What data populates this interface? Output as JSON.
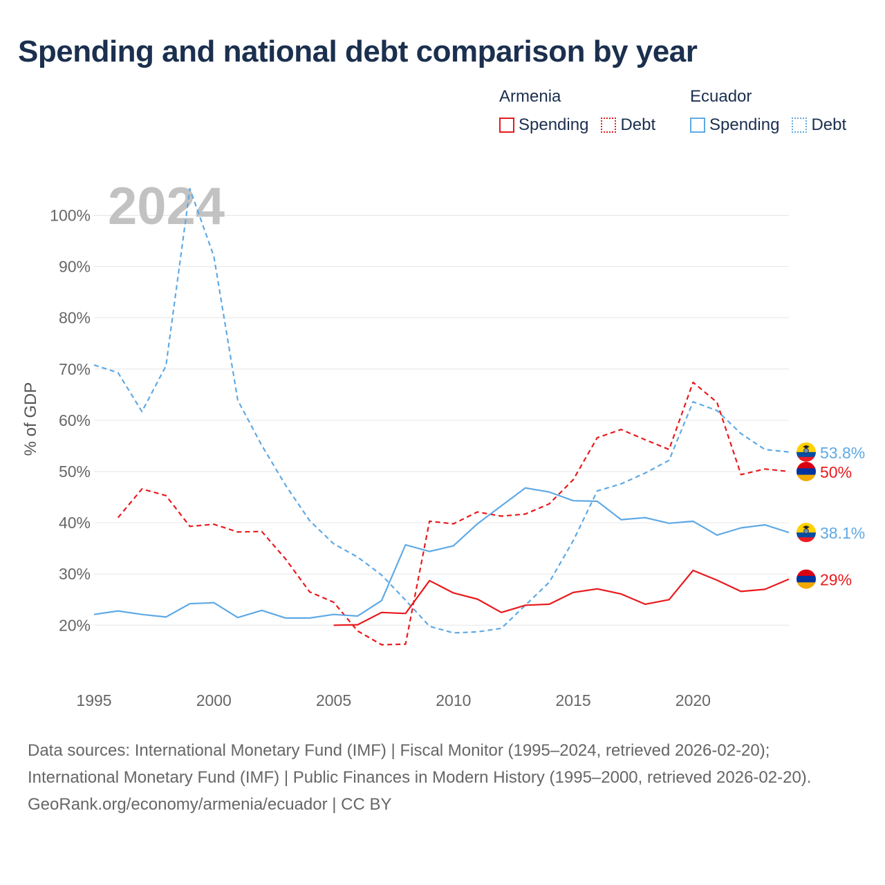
{
  "title": "Spending and national debt comparison by year",
  "legend": {
    "groups": [
      {
        "country": "Armenia",
        "spending_label": "Spending",
        "debt_label": "Debt",
        "color": "#e8191c"
      },
      {
        "country": "Ecuador",
        "spending_label": "Spending",
        "debt_label": "Debt",
        "color": "#5ea9e5"
      }
    ]
  },
  "watermark_year": "2024",
  "footer": {
    "sources": "Data sources: International Monetary Fund (IMF) | Fiscal Monitor (1995–2024, retrieved 2026-02-20); International Monetary Fund (IMF) | Public Finances in Modern History (1995–2000, retrieved 2026-02-20).",
    "credit": "GeoRank.org/economy/armenia/ecuador | CC BY"
  },
  "chart_data": {
    "type": "line",
    "title": "Spending and national debt comparison by year",
    "xlabel": "",
    "ylabel": "% of GDP",
    "xlim": [
      1995,
      2024
    ],
    "ylim": [
      11,
      106
    ],
    "x_ticks": [
      1995,
      2000,
      2005,
      2010,
      2015,
      2020
    ],
    "y_ticks": [
      20,
      30,
      40,
      50,
      60,
      70,
      80,
      90,
      100
    ],
    "y_tick_labels": [
      "20%",
      "30%",
      "40%",
      "50%",
      "60%",
      "70%",
      "80%",
      "90%",
      "100%"
    ],
    "legend_position": "top-right",
    "grid": true,
    "series": [
      {
        "name": "Ecuador Debt",
        "country": "Ecuador",
        "measure": "Debt",
        "color": "#5ea9e5",
        "dashed": true,
        "end_label": "53.8%",
        "points": [
          [
            1995,
            70.8
          ],
          [
            1996,
            69.3
          ],
          [
            1997,
            61.7
          ],
          [
            1998,
            70.6
          ],
          [
            1999,
            105.2
          ],
          [
            2000,
            92.0
          ],
          [
            2001,
            63.9
          ],
          [
            2002,
            55.1
          ],
          [
            2003,
            47.3
          ],
          [
            2004,
            40.4
          ],
          [
            2005,
            35.9
          ],
          [
            2006,
            33.3
          ],
          [
            2007,
            29.8
          ],
          [
            2008,
            24.9
          ],
          [
            2009,
            19.8
          ],
          [
            2010,
            18.5
          ],
          [
            2011,
            18.7
          ],
          [
            2012,
            19.4
          ],
          [
            2013,
            23.9
          ],
          [
            2014,
            28.4
          ],
          [
            2015,
            36.5
          ],
          [
            2016,
            46.2
          ],
          [
            2017,
            47.6
          ],
          [
            2018,
            49.7
          ],
          [
            2019,
            52.2
          ],
          [
            2020,
            63.6
          ],
          [
            2021,
            61.9
          ],
          [
            2022,
            57.4
          ],
          [
            2023,
            54.3
          ],
          [
            2024,
            53.8
          ]
        ]
      },
      {
        "name": "Armenia Debt",
        "country": "Armenia",
        "measure": "Debt",
        "color": "#e8191c",
        "dashed": true,
        "end_label": "50%",
        "points": [
          [
            1996,
            41.0
          ],
          [
            1997,
            46.6
          ],
          [
            1998,
            45.3
          ],
          [
            1999,
            39.3
          ],
          [
            2000,
            39.7
          ],
          [
            2001,
            38.2
          ],
          [
            2002,
            38.3
          ],
          [
            2003,
            32.9
          ],
          [
            2004,
            26.5
          ],
          [
            2005,
            24.5
          ],
          [
            2006,
            18.9
          ],
          [
            2007,
            16.2
          ],
          [
            2008,
            16.3
          ],
          [
            2009,
            40.3
          ],
          [
            2010,
            39.8
          ],
          [
            2011,
            42.1
          ],
          [
            2012,
            41.3
          ],
          [
            2013,
            41.7
          ],
          [
            2014,
            43.7
          ],
          [
            2015,
            48.4
          ],
          [
            2016,
            56.6
          ],
          [
            2017,
            58.2
          ],
          [
            2018,
            56.2
          ],
          [
            2019,
            54.3
          ],
          [
            2020,
            67.4
          ],
          [
            2021,
            63.5
          ],
          [
            2022,
            49.4
          ],
          [
            2023,
            50.5
          ],
          [
            2024,
            50.0
          ]
        ]
      },
      {
        "name": "Ecuador Spending",
        "country": "Ecuador",
        "measure": "Spending",
        "color": "#5ea9e5",
        "dashed": false,
        "end_label": "38.1%",
        "points": [
          [
            1995,
            22.1
          ],
          [
            1996,
            22.8
          ],
          [
            1997,
            22.1
          ],
          [
            1998,
            21.6
          ],
          [
            1999,
            24.2
          ],
          [
            2000,
            24.4
          ],
          [
            2001,
            21.5
          ],
          [
            2002,
            22.9
          ],
          [
            2003,
            21.4
          ],
          [
            2004,
            21.4
          ],
          [
            2005,
            22.1
          ],
          [
            2006,
            21.8
          ],
          [
            2007,
            24.8
          ],
          [
            2008,
            35.7
          ],
          [
            2009,
            34.4
          ],
          [
            2010,
            35.5
          ],
          [
            2011,
            39.8
          ],
          [
            2012,
            43.3
          ],
          [
            2013,
            46.8
          ],
          [
            2014,
            46.0
          ],
          [
            2015,
            44.3
          ],
          [
            2016,
            44.2
          ],
          [
            2017,
            40.6
          ],
          [
            2018,
            41.0
          ],
          [
            2019,
            39.9
          ],
          [
            2020,
            40.3
          ],
          [
            2021,
            37.6
          ],
          [
            2022,
            39.0
          ],
          [
            2023,
            39.6
          ],
          [
            2024,
            38.1
          ]
        ]
      },
      {
        "name": "Armenia Spending",
        "country": "Armenia",
        "measure": "Spending",
        "color": "#e8191c",
        "dashed": false,
        "end_label": "29%",
        "points": [
          [
            2005,
            20.0
          ],
          [
            2006,
            20.1
          ],
          [
            2007,
            22.5
          ],
          [
            2008,
            22.3
          ],
          [
            2009,
            28.7
          ],
          [
            2010,
            26.3
          ],
          [
            2011,
            25.1
          ],
          [
            2012,
            22.5
          ],
          [
            2013,
            23.9
          ],
          [
            2014,
            24.1
          ],
          [
            2015,
            26.4
          ],
          [
            2016,
            27.1
          ],
          [
            2017,
            26.1
          ],
          [
            2018,
            24.1
          ],
          [
            2019,
            25.0
          ],
          [
            2020,
            30.7
          ],
          [
            2021,
            28.8
          ],
          [
            2022,
            26.6
          ],
          [
            2023,
            27.0
          ],
          [
            2024,
            29.0
          ]
        ]
      }
    ]
  }
}
